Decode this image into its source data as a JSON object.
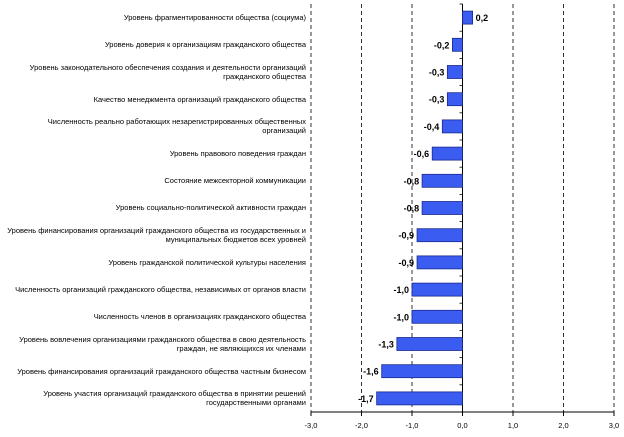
{
  "chart_data": {
    "type": "bar",
    "orientation": "horizontal",
    "categories": [
      "Уровень фрагментированности общества (социума)",
      "Уровень доверия к организациям гражданского общества",
      "Уровень законодательного обеспечения создания и деятельности организаций гражданского общества",
      "Качество менеджмента организаций гражданского общества",
      "Численность реально работающих незарегистрированных общественных организаций",
      "Уровень правового поведения граждан",
      "Состояние межсекторной коммуникации",
      "Уровень социально-политической активности граждан",
      "Уровень финансирования организаций гражданского общества из государственных и муниципальных бюджетов всех уровней",
      "Уровень гражданской политической культуры населения",
      "Численность организаций гражданского общества, независимых от органов власти",
      "Численность членов в организациях гражданского общества",
      "Уровень вовлечения организациями гражданского общества в свою деятельность граждан, не являющихся их членами",
      "Уровень финансирования организаций гражданского общества частным бизнесом",
      "Уровень участия организаций гражданского общества в принятии решений государственными органами"
    ],
    "values": [
      0.2,
      -0.2,
      -0.3,
      -0.3,
      -0.4,
      -0.6,
      -0.8,
      -0.8,
      -0.9,
      -0.9,
      -1.0,
      -1.0,
      -1.3,
      -1.6,
      -1.7
    ],
    "value_labels": [
      "0,2",
      "-0,2",
      "-0,3",
      "-0,3",
      "-0,4",
      "-0,6",
      "-0,8",
      "-0,8",
      "-0,9",
      "-0,9",
      "-1,0",
      "-1,0",
      "-1,3",
      "-1,6",
      "-1,7"
    ],
    "xlim": [
      -3.0,
      3.0
    ],
    "xticks": [
      -3.0,
      -2.0,
      -1.0,
      0.0,
      1.0,
      2.0,
      3.0
    ],
    "xtick_labels": [
      "-3,0",
      "-2,0",
      "-1,0",
      "0,0",
      "1,0",
      "2,0",
      "3,0"
    ],
    "grid": "vertical-dashed",
    "bar_color": "#3b5cf0",
    "bar_edge_color": "#1a2a8c",
    "title": "",
    "xlabel": "",
    "ylabel": ""
  }
}
